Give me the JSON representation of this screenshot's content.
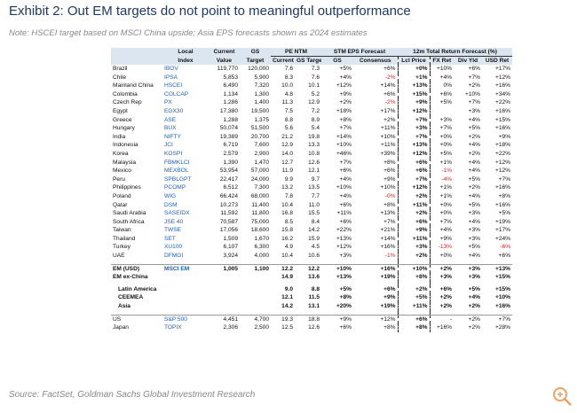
{
  "header": {
    "title": "Exhibit 2: Out EM targets do not point to meaningful outperformance",
    "note": "Note: HSCEI target based on MSCI China upside; Asia EPS forecasts shown as 2024 estimates"
  },
  "table": {
    "top": [
      "Local",
      "Current",
      "GS"
    ],
    "groups": [
      "PE NTM",
      "STM EPS Forecast",
      "12m Total Return Forecast (%)"
    ],
    "sub": [
      "Index",
      "Value",
      "Target",
      "Current",
      "GS Target",
      "GS",
      "Consensus",
      "Lcl Price",
      "FX Ret",
      "Div Yld",
      "USD Ret"
    ],
    "sections": [
      {
        "rows": [
          [
            "Brazil",
            "IBOV",
            "119,770",
            "120,000",
            "7.6",
            "7.3",
            "+5%",
            "+6%",
            "+0%",
            "+10%",
            "+6%",
            "+17%"
          ],
          [
            "Chile",
            "IPSA",
            "5,853",
            "5,900",
            "8.3",
            "7.6",
            "+4%",
            "-2%",
            "+1%",
            "+4%",
            "+7%",
            "+12%"
          ],
          [
            "Mainland China",
            "HSCEI",
            "6,490",
            "7,320",
            "10.0",
            "10.1",
            "+12%",
            "+14%",
            "+13%",
            "0%",
            "+2%",
            "+16%"
          ],
          [
            "Colombia",
            "COLCAP",
            "1,134",
            "1,300",
            "4.8",
            "5.2",
            "+9%",
            "+6%",
            "+15%",
            "+6%",
            "+10%",
            "+34%"
          ],
          [
            "Czech Rep",
            "PX",
            "1,286",
            "1,400",
            "11.3",
            "12.9",
            "+2%",
            "-2%",
            "+9%",
            "+5%",
            "+7%",
            "+22%"
          ],
          [
            "Egypt",
            "EGX30",
            "17,380",
            "19,500",
            "7.5",
            "7.2",
            "+18%",
            "+17%",
            "+12%",
            null,
            "+3%",
            "+16%"
          ],
          [
            "Greece",
            "ASE",
            "1,288",
            "1,375",
            "8.8",
            "8.9",
            "+8%",
            "+2%",
            "+7%",
            "+3%",
            "+4%",
            "+15%"
          ],
          [
            "Hungary",
            "BUX",
            "50,074",
            "51,500",
            "5.6",
            "5.4",
            "+7%",
            "+11%",
            "+3%",
            "+7%",
            "+5%",
            "+16%"
          ],
          [
            "India",
            "NIFTY",
            "19,389",
            "20,700",
            "21.2",
            "19.8",
            "+14%",
            "+10%",
            "+7%",
            "+0%",
            "+2%",
            "+9%"
          ],
          [
            "Indonesia",
            "JCI",
            "6,719",
            "7,600",
            "12.9",
            "13.3",
            "+10%",
            "+11%",
            "+13%",
            "+0%",
            "+4%",
            "+18%"
          ],
          [
            "Korea",
            "KOSPI",
            "2,579",
            "2,900",
            "14.0",
            "10.8",
            "+46%",
            "+39%",
            "+12%",
            "+5%",
            "+2%",
            "+22%"
          ],
          [
            "Malaysia",
            "FBMKLCI",
            "1,390",
            "1,470",
            "12.7",
            "12.6",
            "+7%",
            "+8%",
            "+6%",
            "+1%",
            "+4%",
            "+12%"
          ],
          [
            "Mexico",
            "MEXBOL",
            "53,954",
            "57,000",
            "11.9",
            "12.1",
            "+6%",
            "+6%",
            "+6%",
            "-1%",
            "+4%",
            "+12%"
          ],
          [
            "Peru",
            "SPBLGPT",
            "22,417",
            "24,000",
            "9.9",
            "9.7",
            "+4%",
            "+9%",
            "+7%",
            "-4%",
            "+5%",
            "+7%"
          ],
          [
            "Philippines",
            "PCOMP",
            "6,512",
            "7,300",
            "13.2",
            "13.5",
            "+10%",
            "+10%",
            "+12%",
            "+1%",
            "+2%",
            "+16%"
          ],
          [
            "Poland",
            "WIG",
            "66,424",
            "68,000",
            "7.8",
            "7.7",
            "+4%",
            "-0%",
            "+2%",
            "+1%",
            "+4%",
            "+8%"
          ],
          [
            "Qatar",
            "DSM",
            "10,273",
            "11,400",
            "10.4",
            "11.0",
            "+6%",
            "+8%",
            "+11%",
            "+0%",
            "+5%",
            "+16%"
          ],
          [
            "Saudi Arabia",
            "SASEIDX",
            "11,592",
            "11,800",
            "16.8",
            "15.5",
            "+11%",
            "+13%",
            "+2%",
            "+0%",
            "+3%",
            "+5%"
          ],
          [
            "South Africa",
            "JSE 40",
            "70,587",
            "75,000",
            "8.5",
            "8.4",
            "+6%",
            "+7%",
            "+6%",
            "+7%",
            "+4%",
            "+19%"
          ],
          [
            "Taiwan",
            "TWSE",
            "17,056",
            "18,600",
            "15.8",
            "14.2",
            "+22%",
            "+21%",
            "+9%",
            "+4%",
            "+3%",
            "+17%"
          ],
          [
            "Thailand",
            "SET",
            "1,509",
            "1,670",
            "16.2",
            "15.9",
            "+13%",
            "+14%",
            "+11%",
            "+9%",
            "+3%",
            "+24%"
          ],
          [
            "Turkey",
            "XU100",
            "6,107",
            "6,300",
            "4.9",
            "4.5",
            "+12%",
            "+16%",
            "+3%",
            "-13%",
            "+5%",
            "-6%"
          ],
          [
            "UAE",
            "DFMGI",
            "3,924",
            "4,000",
            "10.4",
            "10.6",
            "+3%",
            "-1%",
            "+2%",
            "+0%",
            "+4%",
            "+6%"
          ]
        ]
      },
      {
        "rows": [
          [
            "EM (USD)",
            "MSCI EM",
            "1,005",
            "1,100",
            "12.2",
            "12.2",
            "+10%",
            "+16%",
            "+10%",
            "+2%",
            "+3%",
            "+13%"
          ],
          [
            "EM ex-China",
            null,
            null,
            null,
            "14.9",
            "13.6",
            "+13%",
            "+19%",
            "+8%",
            "+3%",
            "+3%",
            "+15%"
          ]
        ]
      },
      {
        "rows": [
          [
            "Latin America",
            null,
            null,
            null,
            "9.0",
            "8.8",
            "+5%",
            "+6%",
            "+2%",
            "+6%",
            "+5%",
            "+15%"
          ],
          [
            "CEEMEA",
            null,
            null,
            null,
            "12.1",
            "11.5",
            "+8%",
            "+9%",
            "+5%",
            "+2%",
            "+4%",
            "+10%"
          ],
          [
            "Asia",
            null,
            null,
            null,
            "14.2",
            "13.1",
            "+20%",
            "+19%",
            "+11%",
            "+2%",
            "+2%",
            "+16%"
          ]
        ]
      },
      {
        "rows": [
          [
            "US",
            "S&P 500",
            "4,451",
            "4,700",
            "19.3",
            "18.8",
            "+9%",
            "+12%",
            "+6%",
            "-",
            "+2%",
            "+7%"
          ],
          [
            "Japan",
            "TOPIX",
            "2,306",
            "2,500",
            "12.5",
            "12.6",
            "+6%",
            "+8%",
            "+8%",
            "+16%",
            "+2%",
            "+28%"
          ]
        ]
      }
    ]
  },
  "footer": {
    "source": "Source: FactSet, Goldman Sachs Global Investment Research"
  }
}
